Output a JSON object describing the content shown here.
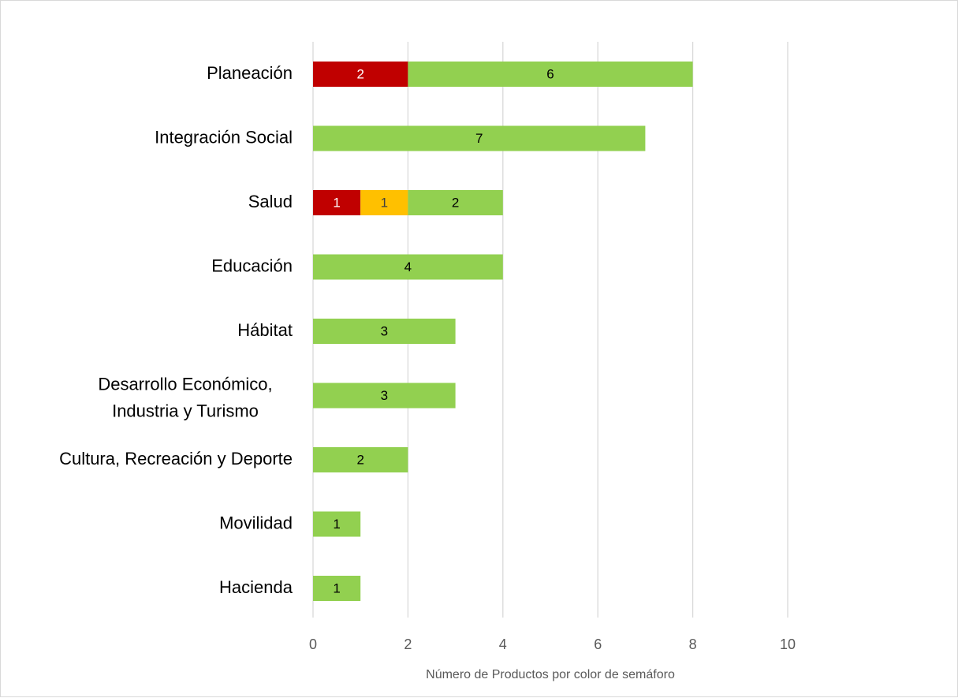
{
  "chart_data": {
    "type": "bar",
    "orientation": "horizontal",
    "stacked": true,
    "categories": [
      "Planeación",
      "Integración Social",
      "Salud",
      "Educación",
      "Hábitat",
      "Desarrollo Económico, Industria y Turismo",
      "Cultura, Recreación y Deporte",
      "Movilidad",
      "Hacienda"
    ],
    "series": [
      {
        "color": "#C00000",
        "label_color": "#FFFFFF",
        "values": [
          2,
          0,
          1,
          0,
          0,
          0,
          0,
          0,
          0
        ]
      },
      {
        "color": "#FFC000",
        "label_color": "#404040",
        "values": [
          0,
          0,
          1,
          0,
          0,
          0,
          0,
          0,
          0
        ]
      },
      {
        "color": "#92D050",
        "label_color": "#000000",
        "values": [
          6,
          7,
          2,
          4,
          3,
          3,
          2,
          1,
          1
        ]
      }
    ],
    "xlabel": "Número de Productos por color de semáforo",
    "ylabel": "",
    "title": "",
    "xlim": [
      0,
      10
    ],
    "xticks": [
      0,
      2,
      4,
      6,
      8,
      10
    ],
    "grid": "vertical",
    "legend": "none"
  }
}
